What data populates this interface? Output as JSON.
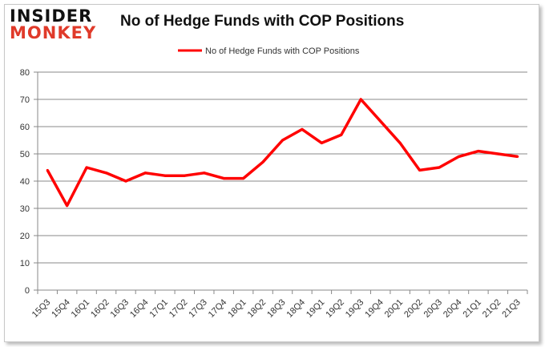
{
  "logo": {
    "line1": "INSIDER",
    "line2": "MONKEY"
  },
  "chart_data": {
    "type": "line",
    "title": "No of Hedge Funds with COP Positions",
    "xlabel": "",
    "ylabel": "",
    "ylim": [
      0,
      80
    ],
    "yticks": [
      0,
      10,
      20,
      30,
      40,
      50,
      60,
      70,
      80
    ],
    "grid": true,
    "legend": "top-center",
    "categories": [
      "15Q3",
      "15Q4",
      "16Q1",
      "16Q2",
      "16Q3",
      "16Q4",
      "17Q1",
      "17Q2",
      "17Q3",
      "17Q4",
      "18Q1",
      "18Q2",
      "18Q3",
      "18Q4",
      "19Q1",
      "19Q2",
      "19Q3",
      "19Q4",
      "20Q1",
      "20Q2",
      "20Q3",
      "20Q4",
      "21Q1",
      "21Q2",
      "21Q3"
    ],
    "series": [
      {
        "name": "No of Hedge Funds with COP Positions",
        "color": "#ff0000",
        "values": [
          44,
          31,
          45,
          43,
          40,
          43,
          42,
          42,
          43,
          41,
          41,
          47,
          55,
          59,
          54,
          57,
          70,
          62,
          54,
          44,
          45,
          49,
          51,
          50,
          49
        ]
      }
    ]
  }
}
